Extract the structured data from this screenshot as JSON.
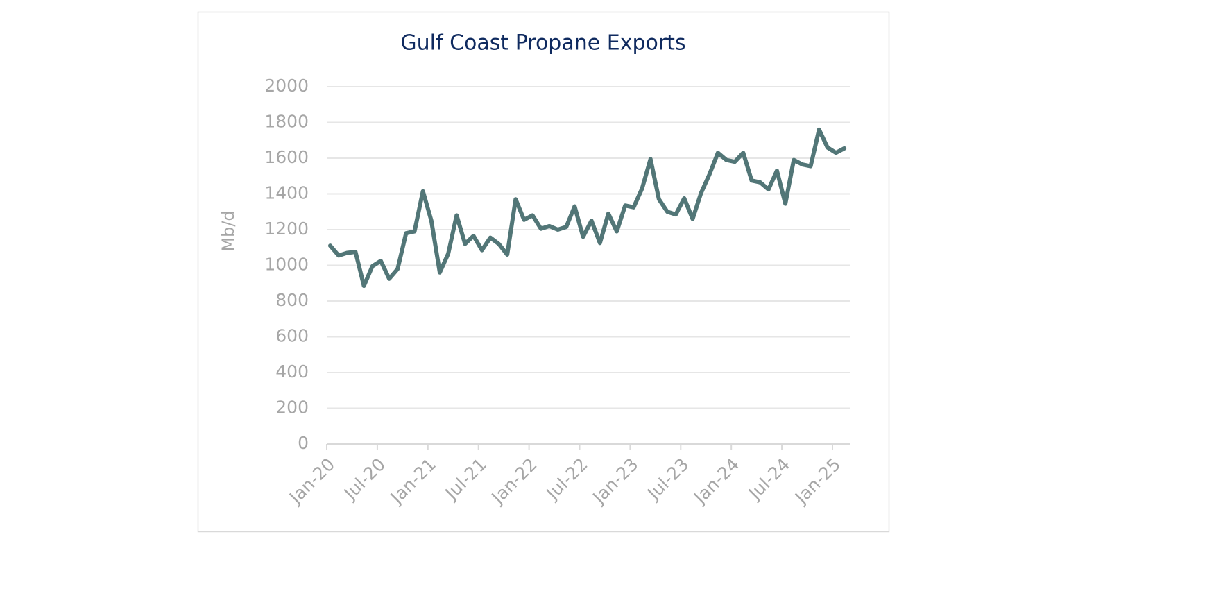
{
  "chart_data": {
    "type": "line",
    "title": "Gulf Coast Propane Exports",
    "y_label": "Mb/d",
    "categories": [
      "Jan-20",
      null,
      null,
      null,
      null,
      null,
      "Jul-20",
      null,
      null,
      null,
      null,
      null,
      "Jan-21",
      null,
      null,
      null,
      null,
      null,
      "Jul-21",
      null,
      null,
      null,
      null,
      null,
      "Jan-22",
      null,
      null,
      null,
      null,
      null,
      "Jul-22",
      null,
      null,
      null,
      null,
      null,
      "Jan-23",
      null,
      null,
      null,
      null,
      null,
      "Jul-23",
      null,
      null,
      null,
      null,
      null,
      "Jan-24",
      null,
      null,
      null,
      null,
      null,
      "Jul-24",
      null,
      null,
      null,
      null,
      null,
      "Jan-25",
      null
    ],
    "values": [
      1110,
      1055,
      1070,
      1075,
      885,
      995,
      1025,
      925,
      980,
      1180,
      1190,
      1415,
      1250,
      960,
      1065,
      1280,
      1120,
      1165,
      1085,
      1155,
      1120,
      1060,
      1370,
      1255,
      1280,
      1205,
      1220,
      1200,
      1215,
      1330,
      1160,
      1250,
      1125,
      1290,
      1190,
      1335,
      1325,
      1430,
      1595,
      1370,
      1300,
      1285,
      1375,
      1260,
      1405,
      1510,
      1630,
      1590,
      1580,
      1630,
      1475,
      1465,
      1425,
      1530,
      1345,
      1590,
      1565,
      1555,
      1760,
      1660,
      1630,
      1655
    ],
    "color": "#527677",
    "ylim": [
      0,
      2000
    ],
    "yticks": [
      0,
      200,
      400,
      600,
      800,
      1000,
      1200,
      1400,
      1600,
      1800,
      2000
    ],
    "grid": true
  }
}
